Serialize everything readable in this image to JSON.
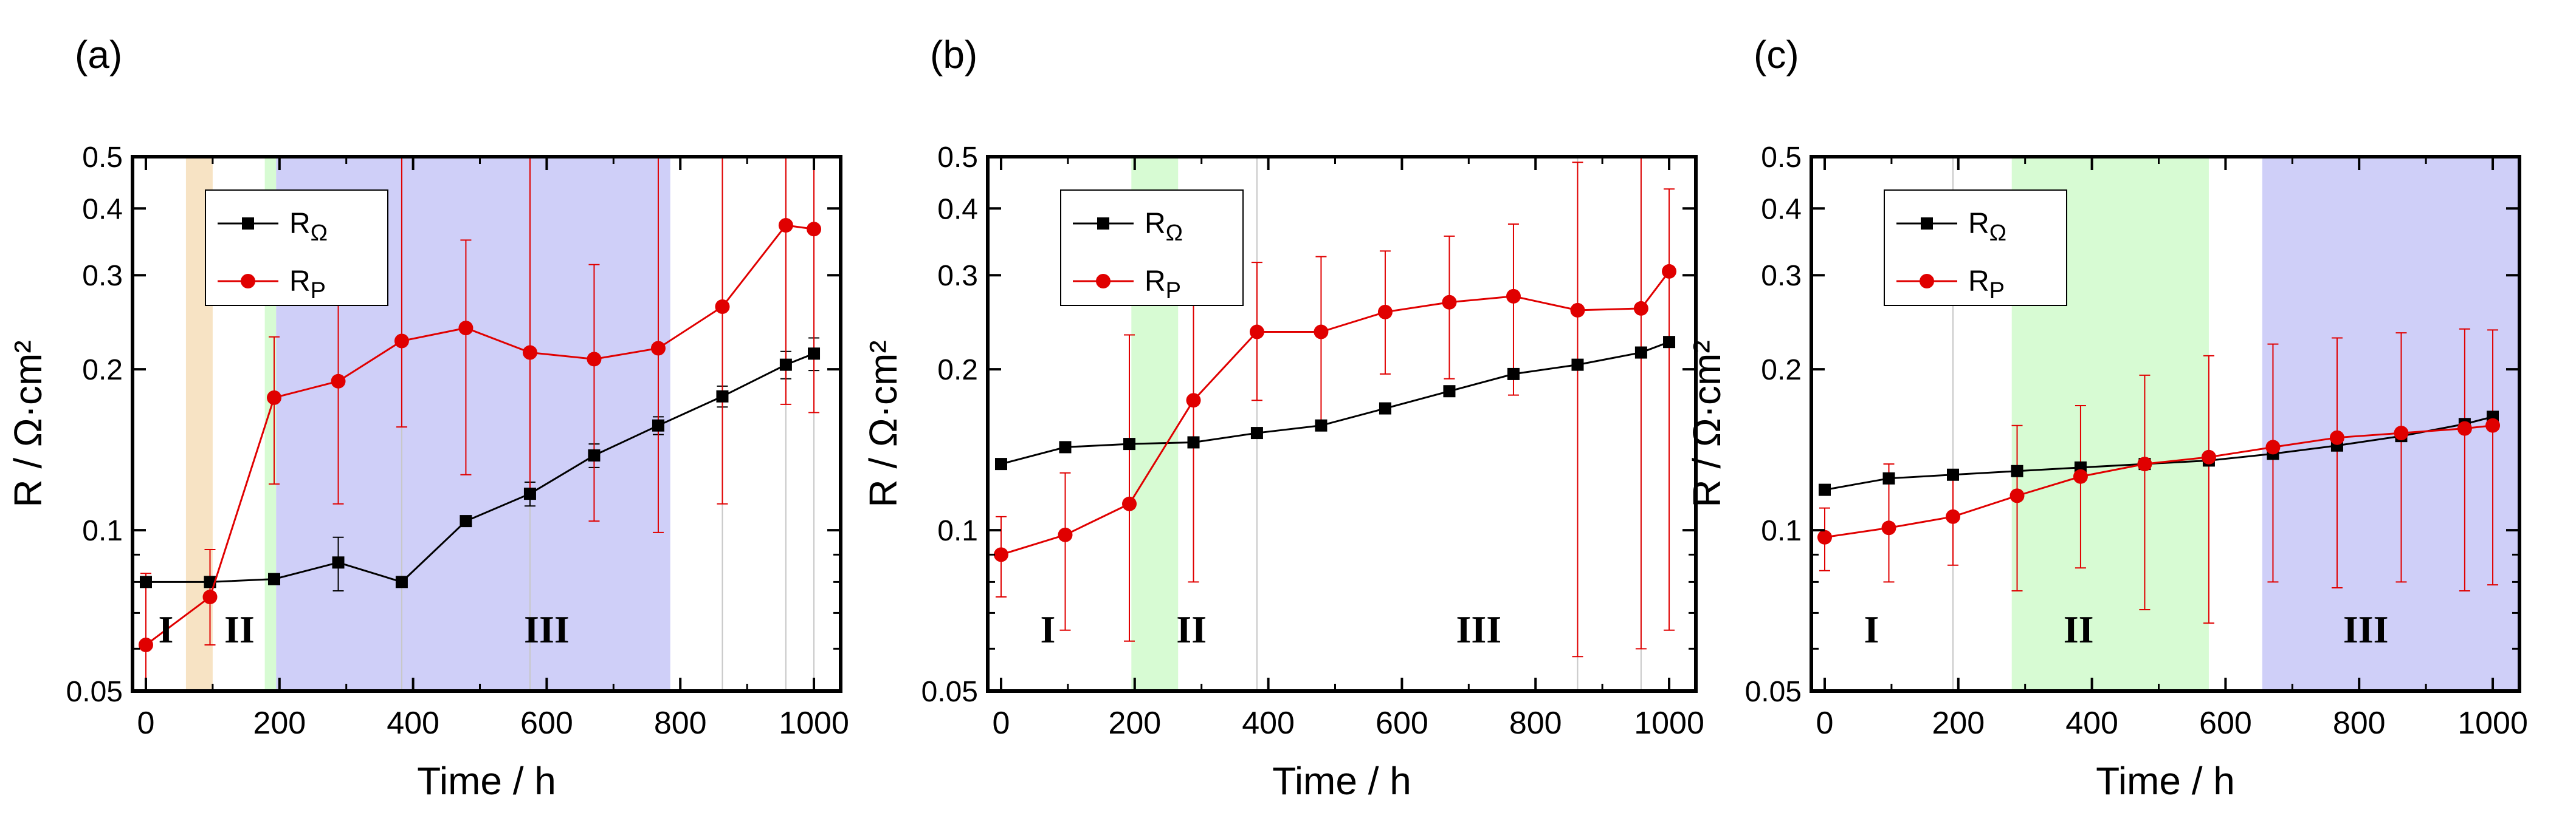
{
  "figure": {
    "colors": {
      "r_ohm": "#000000",
      "r_p": "#e00000",
      "region_orange": "#f7e3c4",
      "region_green": "#d7fbd3",
      "region_blue": "#cfcff8"
    }
  },
  "chart_data": [
    {
      "type": "line",
      "panel_label": "(a)",
      "xlabel": "Time / h",
      "ylabel": "R / Ω·cm²",
      "yscale": "log",
      "xlim": [
        -20,
        1040
      ],
      "ylim": [
        0.05,
        0.5
      ],
      "x_ticks": [
        "0",
        "200",
        "400",
        "600",
        "800",
        "1000"
      ],
      "y_ticks": [
        "0.05",
        "0.1",
        "0.2",
        "0.3",
        "0.4",
        "0.5"
      ],
      "legend": {
        "position": "top-left",
        "entries": [
          {
            "label": "R",
            "sub": "Ω"
          },
          {
            "label": "R",
            "sub": "P"
          }
        ]
      },
      "regions": [
        {
          "label": "I",
          "x_start": 60,
          "x_end": 100,
          "color": "region_orange",
          "label_x": 30
        },
        {
          "label": "II",
          "x_start": 178,
          "x_end": 195,
          "color": "region_green",
          "label_x": 140
        },
        {
          "label": "III",
          "x_start": 195,
          "x_end": 785,
          "color": "region_blue",
          "label_x": 600
        }
      ],
      "vlines": [
        383,
        575,
        863,
        958,
        1000
      ],
      "series": [
        {
          "name": "RΩ",
          "color": "r_ohm",
          "marker": "square",
          "x": [
            0,
            96,
            192,
            288,
            383,
            479,
            575,
            671,
            767,
            863,
            958,
            1000
          ],
          "y": [
            0.08,
            0.08,
            0.081,
            0.087,
            0.08,
            0.104,
            0.117,
            0.138,
            0.157,
            0.178,
            0.204,
            0.214
          ],
          "err": [
            0,
            0,
            0,
            0.01,
            0,
            0,
            0.006,
            0.007,
            0.006,
            0.008,
            0.012,
            0.015
          ]
        },
        {
          "name": "RP",
          "color": "r_p",
          "marker": "circle",
          "x": [
            0,
            96,
            192,
            288,
            383,
            479,
            575,
            671,
            767,
            863,
            958,
            1000
          ],
          "y": [
            0.061,
            0.075,
            0.177,
            0.19,
            0.226,
            0.239,
            0.215,
            0.209,
            0.219,
            0.262,
            0.372,
            0.366
          ],
          "err_low": [
            0.012,
            0.014,
            0.055,
            0.078,
            0.07,
            0.112,
            0.1,
            0.105,
            0.12,
            0.15,
            0.2,
            0.2
          ],
          "err_high": [
            0.022,
            0.017,
            0.053,
            0.08,
            0.5,
            0.11,
            0.5,
            0.105,
            0.5,
            0.5,
            0.5,
            0.5
          ]
        }
      ]
    },
    {
      "type": "line",
      "panel_label": "(b)",
      "xlabel": "Time / h",
      "ylabel": "R / Ω·cm²",
      "yscale": "log",
      "xlim": [
        -20,
        1040
      ],
      "ylim": [
        0.05,
        0.5
      ],
      "x_ticks": [
        "0",
        "200",
        "400",
        "600",
        "800",
        "1000"
      ],
      "y_ticks": [
        "0.05",
        "0.1",
        "0.2",
        "0.3",
        "0.4",
        "0.5"
      ],
      "legend": {
        "position": "top-left",
        "entries": [
          {
            "label": "R",
            "sub": "Ω"
          },
          {
            "label": "R",
            "sub": "P"
          }
        ]
      },
      "regions": [
        {
          "label": "I",
          "x_start": -20,
          "x_end": 195,
          "color": "none",
          "label_x": 70
        },
        {
          "label": "II",
          "x_start": 195,
          "x_end": 265,
          "color": "region_green",
          "label_x": 285
        },
        {
          "label": "III",
          "x_start": 383,
          "x_end": 1040,
          "color": "none",
          "label_x": 715
        }
      ],
      "vlines": [
        383,
        863,
        958
      ],
      "series": [
        {
          "name": "RΩ",
          "color": "r_ohm",
          "marker": "square",
          "x": [
            0,
            96,
            192,
            288,
            383,
            479,
            575,
            671,
            767,
            863,
            958,
            1000
          ],
          "y": [
            0.133,
            0.143,
            0.145,
            0.146,
            0.152,
            0.157,
            0.169,
            0.182,
            0.196,
            0.204,
            0.215,
            0.225
          ],
          "err": [
            0.003,
            0.003,
            0.003,
            0.003,
            0.003,
            0.003,
            0.003,
            0.004,
            0.004,
            0.004,
            0.004,
            0.004
          ]
        },
        {
          "name": "RP",
          "color": "r_p",
          "marker": "circle",
          "x": [
            0,
            96,
            192,
            288,
            383,
            479,
            575,
            671,
            767,
            863,
            958,
            1000
          ],
          "y": [
            0.09,
            0.098,
            0.112,
            0.175,
            0.235,
            0.235,
            0.256,
            0.267,
            0.274,
            0.258,
            0.26,
            0.305
          ],
          "err_low": [
            0.015,
            0.033,
            0.05,
            0.095,
            0.06,
            0.08,
            0.06,
            0.075,
            0.095,
            0.2,
            0.2,
            0.24
          ],
          "err_high": [
            0.016,
            0.03,
            0.12,
            0.09,
            0.082,
            0.09,
            0.077,
            0.088,
            0.1,
            0.23,
            0.24,
            0.13
          ]
        }
      ]
    },
    {
      "type": "line",
      "panel_label": "(c)",
      "xlabel": "Time / h",
      "ylabel": "R / Ω·cm²",
      "yscale": "log",
      "xlim": [
        -20,
        1040
      ],
      "ylim": [
        0.05,
        0.5
      ],
      "x_ticks": [
        "0",
        "200",
        "400",
        "600",
        "800",
        "1000"
      ],
      "y_ticks": [
        "0.05",
        "0.1",
        "0.2",
        "0.3",
        "0.4",
        "0.5"
      ],
      "legend": {
        "position": "top-left",
        "entries": [
          {
            "label": "R",
            "sub": "Ω"
          },
          {
            "label": "R",
            "sub": "P"
          }
        ]
      },
      "regions": [
        {
          "label": "I",
          "x_start": -20,
          "x_end": 192,
          "color": "none",
          "label_x": 70
        },
        {
          "label": "II",
          "x_start": 280,
          "x_end": 575,
          "color": "region_green",
          "label_x": 380
        },
        {
          "label": "III",
          "x_start": 655,
          "x_end": 1040,
          "color": "region_blue",
          "label_x": 810
        }
      ],
      "vlines": [
        192
      ],
      "series": [
        {
          "name": "RΩ",
          "color": "r_ohm",
          "marker": "square",
          "x": [
            0,
            96,
            192,
            288,
            383,
            479,
            575,
            671,
            767,
            863,
            958,
            1000
          ],
          "y": [
            0.119,
            0.125,
            0.127,
            0.129,
            0.131,
            0.133,
            0.135,
            0.139,
            0.144,
            0.15,
            0.158,
            0.163
          ],
          "err": [
            0.002,
            0.002,
            0.002,
            0.002,
            0.002,
            0.002,
            0.002,
            0.002,
            0.002,
            0.002,
            0.002,
            0.002
          ]
        },
        {
          "name": "RP",
          "color": "r_p",
          "marker": "circle",
          "x": [
            0,
            96,
            192,
            288,
            383,
            479,
            575,
            671,
            767,
            863,
            958,
            1000
          ],
          "y": [
            0.097,
            0.101,
            0.106,
            0.116,
            0.126,
            0.133,
            0.137,
            0.143,
            0.149,
            0.152,
            0.155,
            0.157
          ],
          "err_low": [
            0.013,
            0.021,
            0.02,
            0.039,
            0.041,
            0.062,
            0.07,
            0.063,
            0.071,
            0.072,
            0.078,
            0.078
          ],
          "err_high": [
            0.013,
            0.032,
            0.022,
            0.041,
            0.045,
            0.062,
            0.075,
            0.08,
            0.08,
            0.082,
            0.083,
            0.08
          ]
        }
      ]
    }
  ]
}
